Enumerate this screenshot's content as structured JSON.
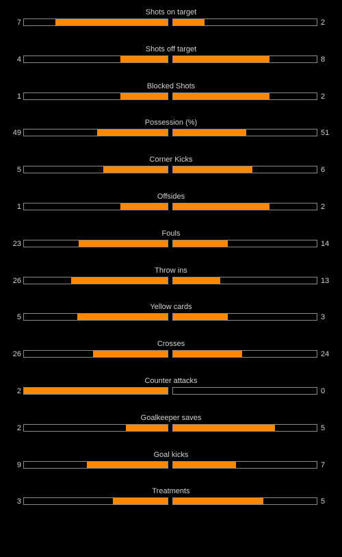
{
  "colors": {
    "background": "#000000",
    "bar_fill": "#ff8800",
    "bar_border": "#8a8a8a",
    "text": "#d2d2d2"
  },
  "stats": [
    {
      "label": "Shots on target",
      "home": "7",
      "away": "2",
      "home_share": 0.78,
      "away_share": 0.22
    },
    {
      "label": "Shots off target",
      "home": "4",
      "away": "8",
      "home_share": 0.33,
      "away_share": 0.67
    },
    {
      "label": "Blocked Shots",
      "home": "1",
      "away": "2",
      "home_share": 0.33,
      "away_share": 0.67
    },
    {
      "label": "Possession (%)",
      "home": "49",
      "away": "51",
      "home_share": 0.49,
      "away_share": 0.51
    },
    {
      "label": "Corner Kicks",
      "home": "5",
      "away": "6",
      "home_share": 0.45,
      "away_share": 0.55
    },
    {
      "label": "Offsides",
      "home": "1",
      "away": "2",
      "home_share": 0.33,
      "away_share": 0.67
    },
    {
      "label": "Fouls",
      "home": "23",
      "away": "14",
      "home_share": 0.62,
      "away_share": 0.38
    },
    {
      "label": "Throw ins",
      "home": "26",
      "away": "13",
      "home_share": 0.67,
      "away_share": 0.33
    },
    {
      "label": "Yellow cards",
      "home": "5",
      "away": "3",
      "home_share": 0.63,
      "away_share": 0.38
    },
    {
      "label": "Crosses",
      "home": "26",
      "away": "24",
      "home_share": 0.52,
      "away_share": 0.48
    },
    {
      "label": "Counter attacks",
      "home": "2",
      "away": "0",
      "home_share": 1.0,
      "away_share": 0.0
    },
    {
      "label": "Goalkeeper saves",
      "home": "2",
      "away": "5",
      "home_share": 0.29,
      "away_share": 0.71
    },
    {
      "label": "Goal kicks",
      "home": "9",
      "away": "7",
      "home_share": 0.56,
      "away_share": 0.44
    },
    {
      "label": "Treatments",
      "home": "3",
      "away": "5",
      "home_share": 0.38,
      "away_share": 0.63
    }
  ]
}
